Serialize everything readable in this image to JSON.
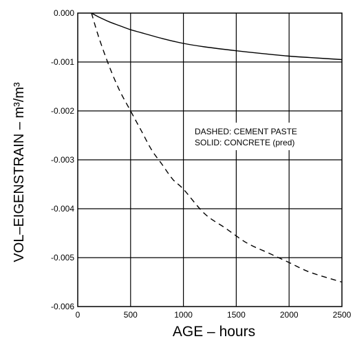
{
  "chart_data": {
    "type": "line",
    "title": "",
    "xlabel": "AGE  –  hours",
    "ylabel": "VOL–EIGENSTRAIN  –  m³/m³",
    "xlim": [
      0,
      2500
    ],
    "ylim": [
      -0.006,
      0.0
    ],
    "x_ticks": [
      "0",
      "500",
      "1000",
      "1500",
      "2000",
      "2500"
    ],
    "y_ticks": [
      "0.000",
      "-0.001",
      "-0.002",
      "-0.003",
      "-0.004",
      "-0.005",
      "-0.006"
    ],
    "grid": true,
    "legend_lines": [
      "DASHED:  CEMENT PASTE",
      "SOLID:  CONCRETE (pred)"
    ],
    "series": [
      {
        "style": "dashed",
        "x": [
          130,
          200,
          300,
          400,
          500,
          600,
          700,
          800,
          900,
          1000,
          1200,
          1400,
          1600,
          1800,
          2000,
          2200,
          2500
        ],
        "y": [
          0.0,
          -0.0005,
          -0.0011,
          -0.0016,
          -0.002,
          -0.0024,
          -0.0028,
          -0.0031,
          -0.0034,
          -0.0036,
          -0.0041,
          -0.0044,
          -0.0047,
          -0.0049,
          -0.0051,
          -0.0053,
          -0.0055
        ]
      },
      {
        "style": "solid",
        "x": [
          130,
          200,
          300,
          400,
          500,
          600,
          800,
          1000,
          1200,
          1500,
          1800,
          2000,
          2200,
          2500
        ],
        "y": [
          0.0,
          -8e-05,
          -0.00018,
          -0.00026,
          -0.00034,
          -0.0004,
          -0.00052,
          -0.00062,
          -0.00069,
          -0.00077,
          -0.00084,
          -0.00088,
          -0.00091,
          -0.00095
        ]
      }
    ]
  }
}
